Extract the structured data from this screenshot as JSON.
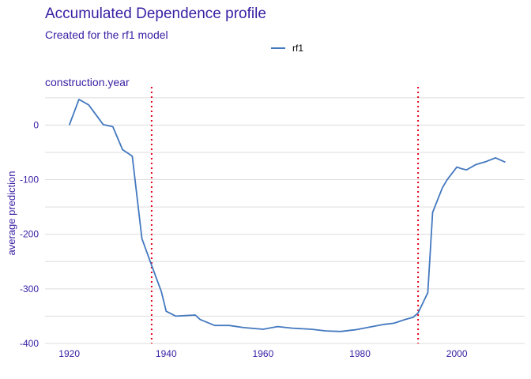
{
  "chart_data": {
    "type": "line",
    "title": "Accumulated Dependence profile",
    "subtitle": "Created for the rf1 model",
    "panel": "construction.year",
    "xlabel": "",
    "ylabel": "average prediction",
    "legend": {
      "position": "top",
      "entries": [
        "rf1"
      ]
    },
    "xlim": [
      1915,
      2014
    ],
    "ylim": [
      -400,
      70
    ],
    "xticks": [
      1920,
      1940,
      1960,
      1980,
      2000
    ],
    "yticks": [
      0,
      -100,
      -200,
      -300,
      -400
    ],
    "ytick_labels": [
      "0",
      "-100",
      "-200",
      "-300",
      "-400"
    ],
    "vlines": [
      1937,
      1992
    ],
    "series": [
      {
        "name": "rf1",
        "color": "#4378bf",
        "x": [
          1920,
          1922,
          1924,
          1927,
          1929,
          1931,
          1933,
          1935,
          1937,
          1939,
          1940,
          1942,
          1944,
          1946,
          1947,
          1950,
          1953,
          1956,
          1960,
          1963,
          1966,
          1970,
          1973,
          1976,
          1979,
          1982,
          1985,
          1987,
          1989,
          1991,
          1992,
          1994,
          1995,
          1997,
          1998,
          2000,
          2001,
          2002,
          2004,
          2006,
          2008,
          2010
        ],
        "values": [
          0,
          47,
          37,
          1,
          -3,
          -45,
          -57,
          -208,
          -257,
          -305,
          -341,
          -350,
          -349,
          -348,
          -356,
          -367,
          -367,
          -371,
          -374,
          -369,
          -372,
          -374,
          -377,
          -378,
          -375,
          -370,
          -365,
          -363,
          -357,
          -352,
          -344,
          -307,
          -160,
          -115,
          -100,
          -77,
          -80,
          -82,
          -72,
          -67,
          -60,
          -68
        ]
      }
    ],
    "colors": {
      "accent": "#371ea3",
      "line": "#4378bf",
      "vline": "#e4001a",
      "grid": "#dddddd"
    }
  }
}
